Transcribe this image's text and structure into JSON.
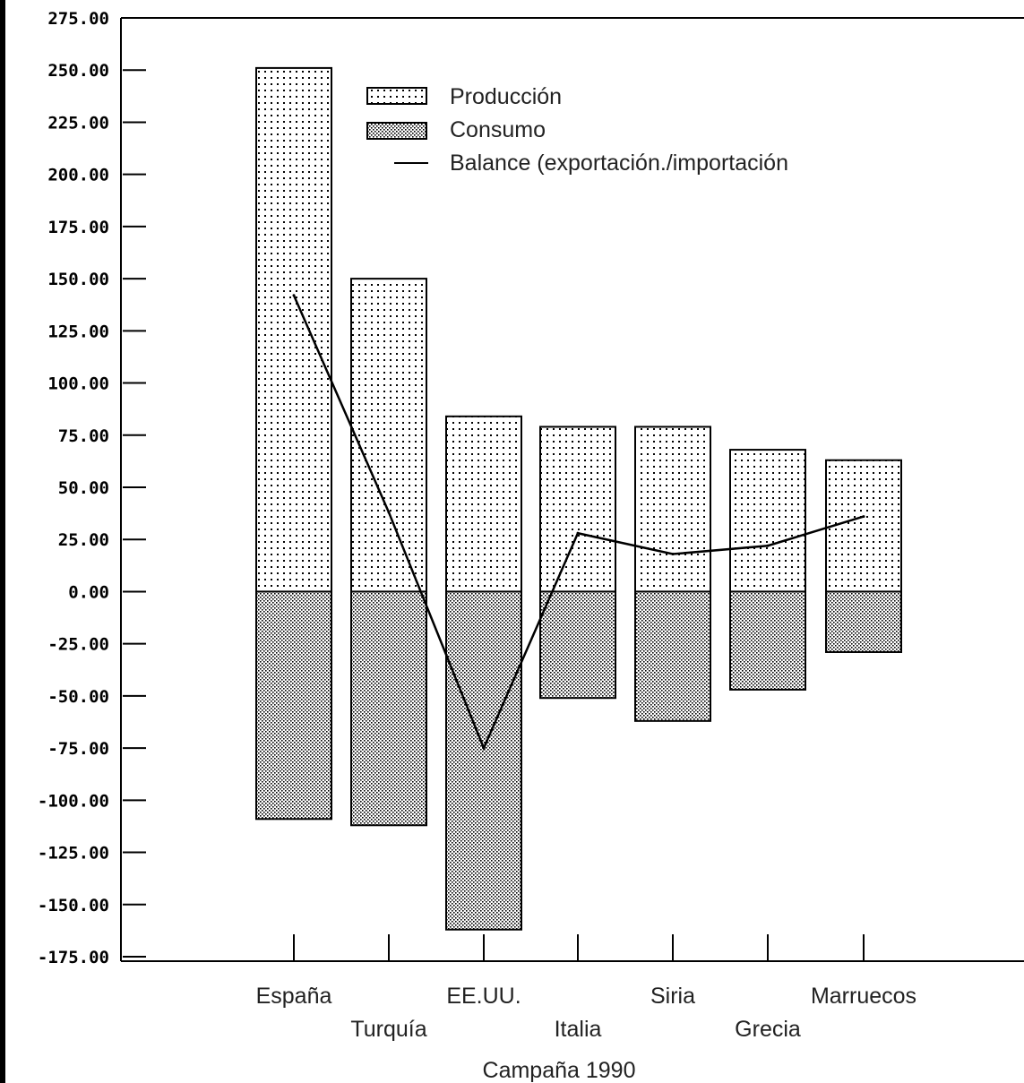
{
  "chart_data": {
    "type": "bar",
    "xlabel": "Campaña 1990",
    "ylabel": "",
    "ylim": [
      -175,
      275
    ],
    "yticks": [
      "275.00",
      "250.00",
      "225.00",
      "200.00",
      "175.00",
      "150.00",
      "125.00",
      "100.00",
      "75.00",
      "50.00",
      "25.00",
      "0.00",
      "-25.00",
      "-50.00",
      "-75.00",
      "-100.00",
      "-125.00",
      "-150.00",
      "-175.00"
    ],
    "categories": [
      "España",
      "Turquía",
      "EE.UU.",
      "Italia",
      "Siria",
      "Grecia",
      "Marruecos"
    ],
    "legend_position": "top",
    "grid": false,
    "series": [
      {
        "name": "Producción",
        "kind": "bar",
        "values": [
          251,
          150,
          84,
          79,
          79,
          68,
          63
        ]
      },
      {
        "name": "Consumo",
        "kind": "bar",
        "values": [
          -109,
          -112,
          -162,
          -51,
          -62,
          -47,
          -29
        ]
      },
      {
        "name": "Balance (exportación./importación",
        "kind": "line",
        "values": [
          142,
          38,
          -75,
          28,
          18,
          22,
          36
        ]
      }
    ],
    "colors": {
      "ink": "#000000",
      "text": "#222222",
      "background": "#ffffff"
    }
  }
}
